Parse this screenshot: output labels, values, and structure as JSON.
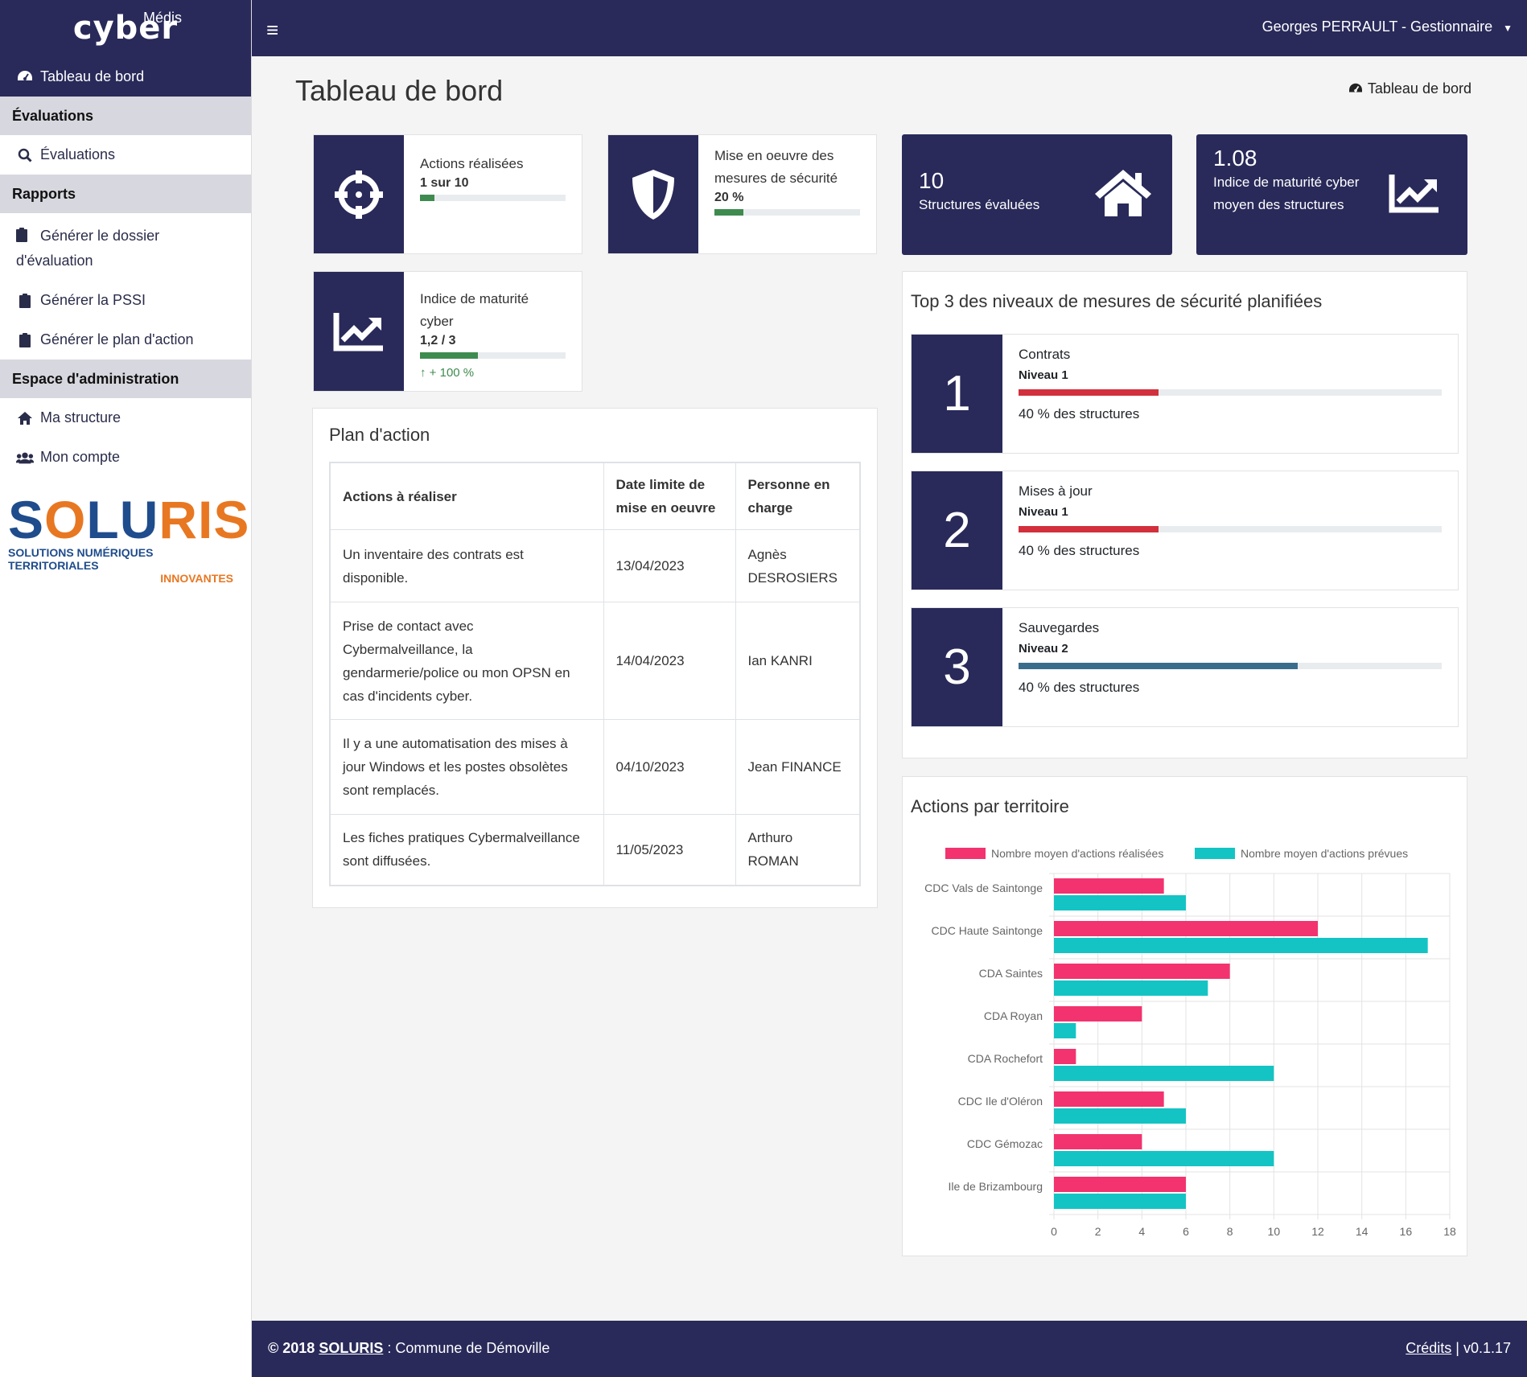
{
  "brand": {
    "name": "cyber",
    "sub": "Médis"
  },
  "sidebar": {
    "active": "Tableau de bord",
    "sections": [
      {
        "title": "Évaluations",
        "items": [
          "Évaluations"
        ]
      },
      {
        "title": "Rapports",
        "items": [
          "Générer le dossier d'évaluation",
          "Générer la PSSI",
          "Générer le plan d'action"
        ]
      },
      {
        "title": "Espace d'administration",
        "items": [
          "Ma structure",
          "Mon compte"
        ]
      }
    ],
    "logo": {
      "word": "SOLURIS",
      "tagline1": "SOLUTIONS NUMÉRIQUES TERRITORIALES",
      "tagline2": "INNOVANTES"
    }
  },
  "header": {
    "user": "Georges PERRAULT - Gestionnaire"
  },
  "page": {
    "title": "Tableau de bord",
    "breadcrumb": "Tableau de bord"
  },
  "stats": {
    "actions": {
      "label": "Actions réalisées",
      "value": "1 sur 10",
      "progress": 0.1
    },
    "mesures": {
      "label": "Mise en oeuvre des mesures de sécurité",
      "value": "20 %",
      "progress": 0.2
    },
    "structures": {
      "value": "10",
      "label": "Structures évaluées"
    },
    "indice_moyen": {
      "value": "1.08",
      "label": "Indice de maturité cyber moyen des structures"
    },
    "indice": {
      "label": "Indice de maturité cyber",
      "value": "1,2 / 3",
      "progress": 0.4,
      "trend": "+ 100 %"
    }
  },
  "plan": {
    "title": "Plan d'action",
    "headers": [
      "Actions à réaliser",
      "Date limite de mise en oeuvre",
      "Personne en charge"
    ],
    "rows": [
      [
        "Un inventaire des contrats est disponible.",
        "13/04/2023",
        "Agnès DESROSIERS"
      ],
      [
        "Prise de contact avec Cybermalveillance, la gendarmerie/police ou mon OPSN en cas d'incidents cyber.",
        "14/04/2023",
        "Ian KANRI"
      ],
      [
        "Il y a une automatisation des mises à jour Windows et les postes obsolètes sont remplacés.",
        "04/10/2023",
        "Jean FINANCE"
      ],
      [
        "Les fiches pratiques Cybermalveillance sont diffusées.",
        "11/05/2023",
        "Arthuro ROMAN"
      ]
    ]
  },
  "top3": {
    "title": "Top 3 des niveaux de mesures de sécurité planifiées",
    "items": [
      {
        "rank": "1",
        "name": "Contrats",
        "level": "Niveau 1",
        "pct": "40 % des structures",
        "progress": 0.33,
        "color": "#d2303c"
      },
      {
        "rank": "2",
        "name": "Mises à jour",
        "level": "Niveau 1",
        "pct": "40 % des structures",
        "progress": 0.33,
        "color": "#d2303c"
      },
      {
        "rank": "3",
        "name": "Sauvegardes",
        "level": "Niveau 2",
        "pct": "40 % des structures",
        "progress": 0.66,
        "color": "#3a6d8c"
      }
    ]
  },
  "territoire": {
    "title": "Actions par territoire"
  },
  "chart_data": {
    "type": "bar",
    "orientation": "horizontal",
    "categories": [
      "CDC Vals de Saintonge",
      "CDC Haute Saintonge",
      "CDA Saintes",
      "CDA Royan",
      "CDA Rochefort",
      "CDC Ile d'Oléron",
      "CDC Gémozac",
      "Ile de Brizambourg"
    ],
    "series": [
      {
        "name": "Nombre moyen d'actions réalisées",
        "color": "#f2336f",
        "values": [
          5,
          12,
          8,
          4,
          1,
          5,
          4,
          6
        ]
      },
      {
        "name": "Nombre moyen d'actions prévues",
        "color": "#14c4c4",
        "values": [
          6,
          17,
          7,
          1,
          10,
          6,
          10,
          6
        ]
      }
    ],
    "xlim": [
      0,
      18
    ],
    "xticks": [
      "0",
      "2",
      "4",
      "6",
      "8",
      "10",
      "12",
      "14",
      "16",
      "18"
    ],
    "legend": "top",
    "grid": true
  },
  "footer": {
    "copyright": "© 2018",
    "company": "SOLURIS",
    "commune": ": Commune de Démoville",
    "credits": "Crédits",
    "version": "| v0.1.17"
  }
}
